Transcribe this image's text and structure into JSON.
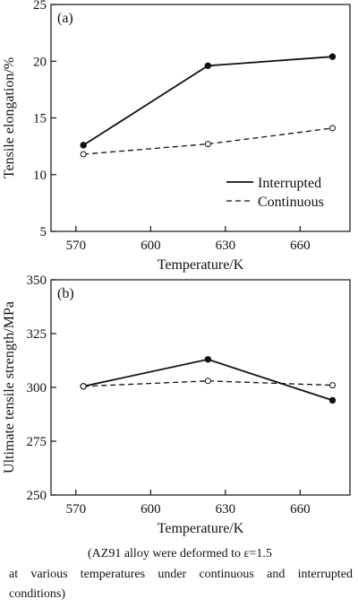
{
  "chart_data": [
    {
      "type": "line",
      "panel_label": "(a)",
      "xlabel": "Temperature/K",
      "ylabel": "Tensile elongation/%",
      "xlim": [
        560,
        680
      ],
      "ylim": [
        5,
        25
      ],
      "x_ticks": [
        570,
        600,
        630,
        660
      ],
      "y_ticks": [
        5,
        10,
        15,
        20,
        25
      ],
      "x": [
        573,
        623,
        673
      ],
      "legend_placement": "bottom-right",
      "series": [
        {
          "name": "Interrupted",
          "style": "solid",
          "marker": "filled-circle",
          "values": [
            12.6,
            19.6,
            20.4
          ]
        },
        {
          "name": "Continuous",
          "style": "dashed",
          "marker": "open-circle",
          "values": [
            11.8,
            12.7,
            14.1
          ]
        }
      ]
    },
    {
      "type": "line",
      "panel_label": "(b)",
      "xlabel": "Temperature/K",
      "ylabel": "Ultimate tensile strength/MPa",
      "xlim": [
        560,
        680
      ],
      "ylim": [
        250,
        350
      ],
      "x_ticks": [
        570,
        600,
        630,
        660
      ],
      "y_ticks": [
        250,
        275,
        300,
        325,
        350
      ],
      "x": [
        573,
        623,
        673
      ],
      "series": [
        {
          "style": "solid",
          "marker": "filled-circle",
          "values": [
            300.5,
            313,
            294
          ]
        },
        {
          "style": "dashed",
          "marker": "open-circle",
          "values": [
            300.5,
            303,
            301
          ]
        }
      ]
    }
  ],
  "caption": {
    "line1": "(AZ91 alloy were deformed to ε=1.5",
    "line2": "at various temperatures under continuous and interrupted",
    "line3": "conditions)"
  }
}
